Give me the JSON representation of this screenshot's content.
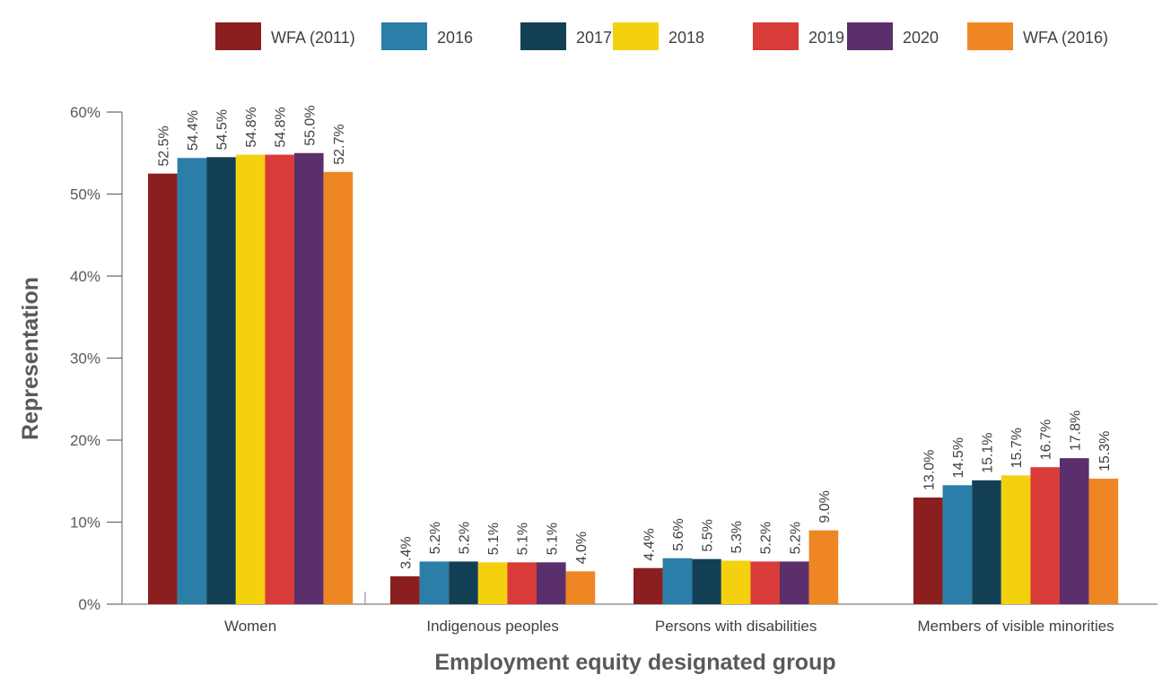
{
  "chart_data": {
    "type": "bar",
    "title": "",
    "xlabel": "Employment equity designated group",
    "ylabel": "Representation",
    "ylim": [
      0,
      60
    ],
    "yticks": [
      0,
      10,
      20,
      30,
      40,
      50,
      60
    ],
    "ytick_labels": [
      "0%",
      "10%",
      "20%",
      "30%",
      "40%",
      "50%",
      "60%"
    ],
    "grid": false,
    "legend_position": "top",
    "categories": [
      "Women",
      "Indigenous peoples",
      "Persons with disabilities",
      "Members of visible minorities"
    ],
    "series": [
      {
        "name": "WFA (2011)",
        "color": "#8b1e1f",
        "values": [
          52.5,
          3.4,
          4.4,
          13.0
        ],
        "labels": [
          "52.5%",
          "3.4%",
          "4.4%",
          "13.0%"
        ]
      },
      {
        "name": "2016",
        "color": "#2a7ea8",
        "values": [
          54.4,
          5.2,
          5.6,
          14.5
        ],
        "labels": [
          "54.4%",
          "5.2%",
          "5.6%",
          "14.5%"
        ]
      },
      {
        "name": "2017",
        "color": "#133f55",
        "values": [
          54.5,
          5.2,
          5.5,
          15.1
        ],
        "labels": [
          "54.5%",
          "5.2%",
          "5.5%",
          "15.1%"
        ]
      },
      {
        "name": "2018",
        "color": "#f4d10f",
        "values": [
          54.8,
          5.1,
          5.3,
          15.7
        ],
        "labels": [
          "54.8%",
          "5.1%",
          "5.3%",
          "15.7%"
        ]
      },
      {
        "name": "2019",
        "color": "#d93b38",
        "values": [
          54.8,
          5.1,
          5.2,
          16.7
        ],
        "labels": [
          "54.8%",
          "5.1%",
          "5.2%",
          "16.7%"
        ]
      },
      {
        "name": "2020",
        "color": "#5a2f6b",
        "values": [
          55.0,
          5.1,
          5.2,
          17.8
        ],
        "labels": [
          "55.0%",
          "5.1%",
          "5.2%",
          "17.8%"
        ]
      },
      {
        "name": "WFA (2016)",
        "color": "#ef8624",
        "values": [
          52.7,
          4.0,
          9.0,
          15.3
        ],
        "labels": [
          "52.7%",
          "4.0%",
          "9.0%",
          "15.3%"
        ]
      }
    ]
  }
}
